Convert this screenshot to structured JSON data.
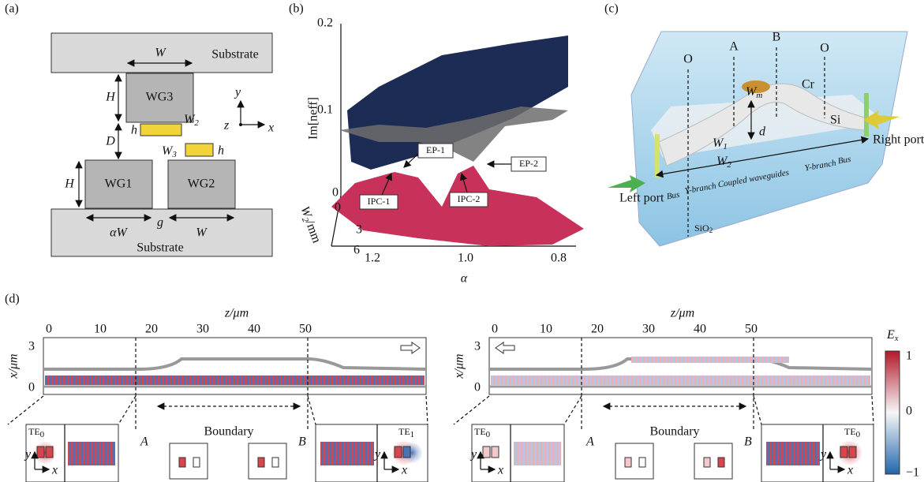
{
  "panel_a": {
    "label": "(a)",
    "substrate_top": "Substrate",
    "substrate_bottom": "Substrate",
    "wg1": "WG1",
    "wg2": "WG2",
    "wg3": "WG3",
    "W_top": "W",
    "H_top": "H",
    "h_top": "h",
    "W2": {
      "base": "W",
      "sub": "2"
    },
    "D": "D",
    "W3": {
      "base": "W",
      "sub": "3"
    },
    "h_right": "h",
    "H_bottom": "H",
    "alphaW": "αW",
    "g": "g",
    "W_bottom": "W",
    "axis_y": "y",
    "axis_z": "z",
    "axis_x": "x"
  },
  "panel_b": {
    "label": "(b)",
    "y_label": "Im[neff]",
    "y_ticks": [
      "0.2",
      "0.1",
      "0"
    ],
    "w2_label": {
      "base": "W",
      "sub": "2",
      "unit": "/mm"
    },
    "w2_ticks": [
      "0",
      "3",
      "6"
    ],
    "alpha_label": "α",
    "alpha_ticks": [
      "1.2",
      "1.0",
      "0.8"
    ],
    "ep1": "EP-1",
    "ep2": "EP-2",
    "ipc1": "IPC-1",
    "ipc2": "IPC-2"
  },
  "panel_c": {
    "label": "(c)",
    "O_left": "O",
    "A": "A",
    "B": "B",
    "O_right": "O",
    "Wm": {
      "base": "W",
      "sub": "m"
    },
    "Cr": "Cr",
    "Si": "Si",
    "d": "d",
    "W1": {
      "base": "W",
      "sub": "1"
    },
    "W2": {
      "base": "W",
      "sub": "2"
    },
    "right_port": "Right port",
    "left_port": "Left port",
    "sections": [
      "Bus",
      "Y-branch",
      "Coupled waveguides",
      "Y-branch",
      "Bus"
    ],
    "sio2": {
      "base": "SiO",
      "sub": "2"
    }
  },
  "panel_d": {
    "label": "(d)",
    "left": {
      "z_label": "z/μm",
      "z_ticks": [
        "0",
        "10",
        "20",
        "30",
        "40",
        "50"
      ],
      "x_label": "x/μm",
      "x_ticks": [
        "3",
        "0"
      ],
      "mode_in": {
        "base": "TE",
        "sub": "0"
      },
      "mode_out": {
        "base": "TE",
        "sub": "1"
      },
      "A": "A",
      "B": "B",
      "boundary": "Boundary"
    },
    "right": {
      "z_label": "z/μm",
      "z_ticks": [
        "0",
        "10",
        "20",
        "30",
        "40",
        "50"
      ],
      "x_label": "x/μm",
      "x_ticks": [
        "3",
        "0"
      ],
      "mode_in": {
        "base": "TE",
        "sub": "0"
      },
      "mode_out": {
        "base": "TE",
        "sub": "0"
      },
      "A": "A",
      "B": "B",
      "boundary": "Boundary"
    },
    "inset_y": "y",
    "inset_x": "x",
    "colorbar": {
      "label": {
        "base": "E",
        "sub": "x"
      },
      "ticks": [
        "1",
        "0",
        "−1"
      ]
    }
  }
}
